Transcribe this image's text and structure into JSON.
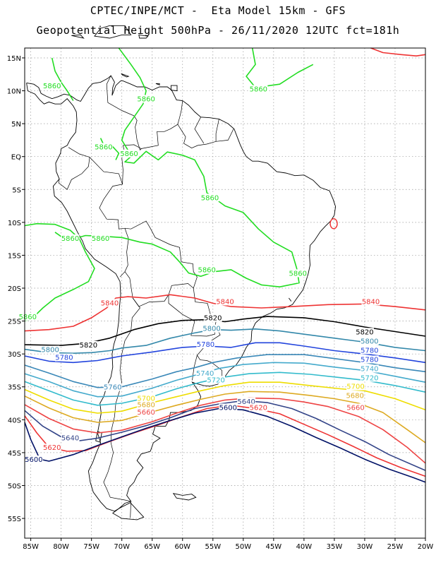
{
  "header": {
    "line1": "CPTEC/INPE/MCT -  Eta Model 15km - GFS",
    "line2": "Geopotential Height 500hPa - 26/11/2020 12UTC fct=181h"
  },
  "axes": {
    "lon_labels": [
      "85W",
      "80W",
      "75W",
      "70W",
      "65W",
      "60W",
      "55W",
      "50W",
      "45W",
      "40W",
      "35W",
      "30W",
      "25W",
      "20W"
    ],
    "lon_values": [
      -85,
      -80,
      -75,
      -70,
      -65,
      -60,
      -55,
      -50,
      -45,
      -40,
      -35,
      -30,
      -25,
      -20
    ],
    "lat_labels": [
      "15N",
      "10N",
      "5N",
      "EQ",
      "5S",
      "10S",
      "15S",
      "20S",
      "25S",
      "30S",
      "35S",
      "40S",
      "45S",
      "50S",
      "55S"
    ],
    "lat_values": [
      15,
      10,
      5,
      0,
      -5,
      -10,
      -15,
      -20,
      -25,
      -30,
      -35,
      -40,
      -45,
      -50,
      -55
    ],
    "lon_range": [
      -86,
      -20
    ],
    "lat_range": [
      -58,
      16.5
    ],
    "grid": "dotted"
  },
  "contour_colors": {
    "5860": "#22dd22",
    "5840": "#ee3333",
    "5820": "#000000",
    "5800": "#3388aa",
    "5780": "#2244dd",
    "5760": "#3a88b8",
    "5740": "#44aacc",
    "5720": "#33bbcc",
    "5700": "#eedd00",
    "5680": "#ddaa22",
    "5660": "#ee4444",
    "5640": "#334488",
    "5620": "#ee3333",
    "5600": "#001166"
  },
  "contour_labels": [
    {
      "text": "5860",
      "level": "5860",
      "lon": -81.5,
      "lat": 10.5
    },
    {
      "text": "5860",
      "level": "5860",
      "lon": -66,
      "lat": 8.5
    },
    {
      "text": "5860",
      "level": "5860",
      "lon": -73,
      "lat": 1.2
    },
    {
      "text": "5860",
      "level": "5860",
      "lon": -68.8,
      "lat": 0.2
    },
    {
      "text": "5860",
      "level": "5860",
      "lon": -47.5,
      "lat": 10
    },
    {
      "text": "5860",
      "level": "5860",
      "lon": -55.5,
      "lat": -6.5
    },
    {
      "text": "5860",
      "level": "5860",
      "lon": -78.5,
      "lat": -12.7
    },
    {
      "text": "5860",
      "level": "5860",
      "lon": -73.5,
      "lat": -12.7
    },
    {
      "text": "5860",
      "level": "5860",
      "lon": -56,
      "lat": -17.5
    },
    {
      "text": "5860",
      "level": "5860",
      "lon": -41,
      "lat": -18
    },
    {
      "text": "5860",
      "level": "5860",
      "lon": -85.5,
      "lat": -24.6
    },
    {
      "text": "5840",
      "level": "5840",
      "lon": -72,
      "lat": -22.5
    },
    {
      "text": "5840",
      "level": "5840",
      "lon": -53,
      "lat": -22.3
    },
    {
      "text": "5840",
      "level": "5840",
      "lon": -29,
      "lat": -22.3
    },
    {
      "text": "5820",
      "level": "5820",
      "lon": -55,
      "lat": -24.8
    },
    {
      "text": "5820",
      "level": "5820",
      "lon": -75.5,
      "lat": -28.9
    },
    {
      "text": "5820",
      "level": "5820",
      "lon": -30,
      "lat": -26.9
    },
    {
      "text": "5800",
      "level": "5800",
      "lon": -55.2,
      "lat": -26.4
    },
    {
      "text": "5800",
      "level": "5800",
      "lon": -81.8,
      "lat": -29.6
    },
    {
      "text": "5800",
      "level": "5800",
      "lon": -29.2,
      "lat": -28.3
    },
    {
      "text": "5780",
      "level": "5780",
      "lon": -56.2,
      "lat": -28.8
    },
    {
      "text": "5780",
      "level": "5780",
      "lon": -79.5,
      "lat": -30.8
    },
    {
      "text": "5780",
      "level": "5780",
      "lon": -29.2,
      "lat": -29.7
    },
    {
      "text": "5780",
      "level": "5780",
      "lon": -29.2,
      "lat": -31.1
    },
    {
      "text": "5760",
      "level": "5760",
      "lon": -71.5,
      "lat": -35.3
    },
    {
      "text": "5740",
      "level": "5740",
      "lon": -56.3,
      "lat": -33.2
    },
    {
      "text": "5740",
      "level": "5740",
      "lon": -29.2,
      "lat": -32.5
    },
    {
      "text": "5720",
      "level": "5720",
      "lon": -54.5,
      "lat": -34.2
    },
    {
      "text": "5720",
      "level": "5720",
      "lon": -29.2,
      "lat": -33.9
    },
    {
      "text": "5700",
      "level": "5700",
      "lon": -66,
      "lat": -37.0
    },
    {
      "text": "5700",
      "level": "5700",
      "lon": -31.5,
      "lat": -35.2
    },
    {
      "text": "5680",
      "level": "5680",
      "lon": -66,
      "lat": -38.0
    },
    {
      "text": "5680",
      "level": "5680",
      "lon": -31.6,
      "lat": -36.6
    },
    {
      "text": "5660",
      "level": "5660",
      "lon": -66,
      "lat": -39.1
    },
    {
      "text": "5660",
      "level": "5660",
      "lon": -31.5,
      "lat": -38.4
    },
    {
      "text": "5640",
      "level": "5640",
      "lon": -49.5,
      "lat": -37.5
    },
    {
      "text": "5620",
      "level": "5620",
      "lon": -47.5,
      "lat": -38.4
    },
    {
      "text": "5600",
      "level": "5600",
      "lon": -52.5,
      "lat": -38.4
    },
    {
      "text": "5640",
      "level": "5640",
      "lon": -78.5,
      "lat": -43.0
    },
    {
      "text": "5620",
      "level": "5620",
      "lon": -81.5,
      "lat": -44.5
    },
    {
      "text": "5600",
      "level": "5600",
      "lon": -84.5,
      "lat": -46.3
    }
  ]
}
